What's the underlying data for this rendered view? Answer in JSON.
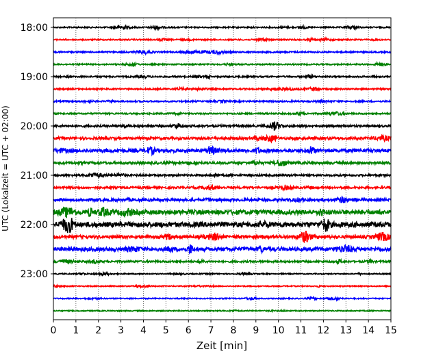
{
  "chart_data": {
    "type": "line",
    "title": "",
    "xlabel": "Zeit  [min]",
    "ylabel": "UTC (Lokalzeit = UTC + 02:00)",
    "xlim": [
      0,
      15
    ],
    "x_ticks": [
      "0",
      "1",
      "2",
      "3",
      "4",
      "5",
      "6",
      "7",
      "8",
      "9",
      "10",
      "11",
      "12",
      "13",
      "14",
      "15"
    ],
    "y_tick_labels": [
      "18:00",
      "19:00",
      "20:00",
      "21:00",
      "22:00",
      "23:00"
    ],
    "grid_x": true,
    "traces": [
      {
        "start": "18:00",
        "color": "#000000",
        "amplitude": 0.6
      },
      {
        "start": "18:15",
        "color": "#ff0000",
        "amplitude": 0.6
      },
      {
        "start": "18:30",
        "color": "#0000ff",
        "amplitude": 0.7
      },
      {
        "start": "18:45",
        "color": "#008000",
        "amplitude": 0.6
      },
      {
        "start": "19:00",
        "color": "#000000",
        "amplitude": 0.7
      },
      {
        "start": "19:15",
        "color": "#ff0000",
        "amplitude": 0.7
      },
      {
        "start": "19:30",
        "color": "#0000ff",
        "amplitude": 0.7
      },
      {
        "start": "19:45",
        "color": "#008000",
        "amplitude": 0.7
      },
      {
        "start": "20:00",
        "color": "#000000",
        "amplitude": 1.0
      },
      {
        "start": "20:15",
        "color": "#ff0000",
        "amplitude": 1.2
      },
      {
        "start": "20:30",
        "color": "#0000ff",
        "amplitude": 1.6
      },
      {
        "start": "20:45",
        "color": "#008000",
        "amplitude": 1.2
      },
      {
        "start": "21:00",
        "color": "#000000",
        "amplitude": 0.9
      },
      {
        "start": "21:15",
        "color": "#ff0000",
        "amplitude": 1.0
      },
      {
        "start": "21:30",
        "color": "#0000ff",
        "amplitude": 1.3
      },
      {
        "start": "21:45",
        "color": "#008000",
        "amplitude": 2.2
      },
      {
        "start": "22:00",
        "color": "#000000",
        "amplitude": 2.4
      },
      {
        "start": "22:15",
        "color": "#ff0000",
        "amplitude": 1.5
      },
      {
        "start": "22:30",
        "color": "#0000ff",
        "amplitude": 1.8
      },
      {
        "start": "22:45",
        "color": "#008000",
        "amplitude": 0.9
      },
      {
        "start": "23:00",
        "color": "#000000",
        "amplitude": 0.5
      },
      {
        "start": "23:15",
        "color": "#ff0000",
        "amplitude": 0.5
      },
      {
        "start": "23:30",
        "color": "#0000ff",
        "amplitude": 0.5
      },
      {
        "start": "23:45",
        "color": "#008000",
        "amplitude": 0.5
      }
    ]
  }
}
